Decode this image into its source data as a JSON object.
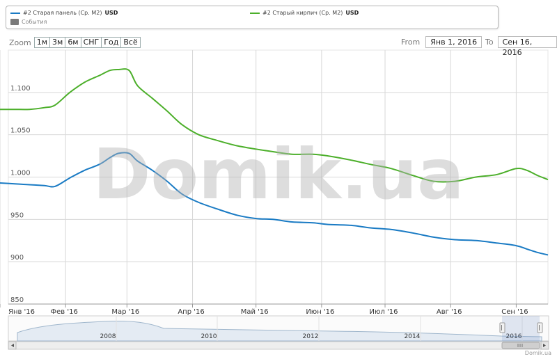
{
  "legend": {
    "series1_label": "#2 Старая панель (Ср. М2)",
    "series1_unit": "USD",
    "series2_label": "#2 Старый кирпич (Ср. М2)",
    "series2_unit": "USD",
    "events_label": "События"
  },
  "zoom": {
    "label": "Zoom",
    "buttons": [
      "1м",
      "3м",
      "6м",
      "СНГ",
      "Год",
      "Всё"
    ]
  },
  "range": {
    "from_label": "From",
    "from_value": "Янв 1, 2016",
    "to_label": "To",
    "to_value": "Сен 16, 2016"
  },
  "watermark": "Domik.ua",
  "credit": "Domik.ua",
  "colors": {
    "series1": "#1a7bc4",
    "series2": "#4caf2a",
    "grid": "#d8d8d8"
  },
  "chart_data": {
    "type": "line",
    "x_range": [
      "2016-01-01",
      "2016-09-16"
    ],
    "ylim": [
      850,
      1150
    ],
    "yticks": [
      850,
      900,
      950,
      1000,
      1050,
      1100
    ],
    "ytick_labels": [
      "850",
      "900",
      "950",
      "1.000",
      "1.050",
      "1.100"
    ],
    "xticks": [
      "2016-01-01",
      "2016-02-01",
      "2016-03-01",
      "2016-04-01",
      "2016-05-01",
      "2016-06-01",
      "2016-07-01",
      "2016-08-01",
      "2016-09-01"
    ],
    "xtick_labels": [
      "Янв '16",
      "Фев '16",
      "Мар '16",
      "Апр '16",
      "Май '16",
      "Июн '16",
      "Июл '16",
      "Авг '16",
      "Сен '16"
    ],
    "grid": true,
    "series": [
      {
        "name": "#2 Старая панель (Ср. М2) USD",
        "color": "#1a7bc4",
        "points": [
          [
            "2016-01-01",
            993
          ],
          [
            "2016-01-08",
            992
          ],
          [
            "2016-01-15",
            991
          ],
          [
            "2016-01-22",
            990
          ],
          [
            "2016-01-27",
            989
          ],
          [
            "2016-02-03",
            999
          ],
          [
            "2016-02-10",
            1008
          ],
          [
            "2016-02-17",
            1015
          ],
          [
            "2016-02-22",
            1023
          ],
          [
            "2016-02-26",
            1028
          ],
          [
            "2016-03-02",
            1028
          ],
          [
            "2016-03-06",
            1019
          ],
          [
            "2016-03-13",
            1008
          ],
          [
            "2016-03-20",
            995
          ],
          [
            "2016-03-27",
            980
          ],
          [
            "2016-04-04",
            970
          ],
          [
            "2016-04-13",
            962
          ],
          [
            "2016-04-22",
            955
          ],
          [
            "2016-05-01",
            951
          ],
          [
            "2016-05-09",
            950
          ],
          [
            "2016-05-18",
            947
          ],
          [
            "2016-05-28",
            946
          ],
          [
            "2016-06-04",
            944
          ],
          [
            "2016-06-15",
            943
          ],
          [
            "2016-06-24",
            940
          ],
          [
            "2016-07-04",
            938
          ],
          [
            "2016-07-14",
            934
          ],
          [
            "2016-07-24",
            929
          ],
          [
            "2016-08-03",
            926
          ],
          [
            "2016-08-13",
            925
          ],
          [
            "2016-08-23",
            922
          ],
          [
            "2016-09-01",
            919
          ],
          [
            "2016-09-06",
            915
          ],
          [
            "2016-09-11",
            911
          ],
          [
            "2016-09-16",
            908
          ]
        ]
      },
      {
        "name": "#2 Старый кирпич (Ср. М2) USD",
        "color": "#4caf2a",
        "points": [
          [
            "2016-01-01",
            1080
          ],
          [
            "2016-01-08",
            1080
          ],
          [
            "2016-01-15",
            1080
          ],
          [
            "2016-01-22",
            1082
          ],
          [
            "2016-01-27",
            1085
          ],
          [
            "2016-02-03",
            1100
          ],
          [
            "2016-02-10",
            1112
          ],
          [
            "2016-02-17",
            1120
          ],
          [
            "2016-02-22",
            1126
          ],
          [
            "2016-02-26",
            1127
          ],
          [
            "2016-03-02",
            1126
          ],
          [
            "2016-03-06",
            1108
          ],
          [
            "2016-03-13",
            1093
          ],
          [
            "2016-03-20",
            1078
          ],
          [
            "2016-03-27",
            1062
          ],
          [
            "2016-04-04",
            1050
          ],
          [
            "2016-04-13",
            1043
          ],
          [
            "2016-04-22",
            1037
          ],
          [
            "2016-05-01",
            1033
          ],
          [
            "2016-05-09",
            1030
          ],
          [
            "2016-05-18",
            1027
          ],
          [
            "2016-05-28",
            1027
          ],
          [
            "2016-06-04",
            1025
          ],
          [
            "2016-06-15",
            1020
          ],
          [
            "2016-06-24",
            1015
          ],
          [
            "2016-07-04",
            1010
          ],
          [
            "2016-07-14",
            1002
          ],
          [
            "2016-07-24",
            995
          ],
          [
            "2016-08-03",
            995
          ],
          [
            "2016-08-13",
            1000
          ],
          [
            "2016-08-23",
            1003
          ],
          [
            "2016-09-01",
            1010
          ],
          [
            "2016-09-06",
            1008
          ],
          [
            "2016-09-11",
            1002
          ],
          [
            "2016-09-16",
            997
          ]
        ]
      }
    ],
    "navigator": {
      "labels": [
        "2008",
        "2010",
        "2012",
        "2014",
        "2016"
      ],
      "selected_range": [
        "2016-01-01",
        "2016-09-16"
      ]
    }
  }
}
